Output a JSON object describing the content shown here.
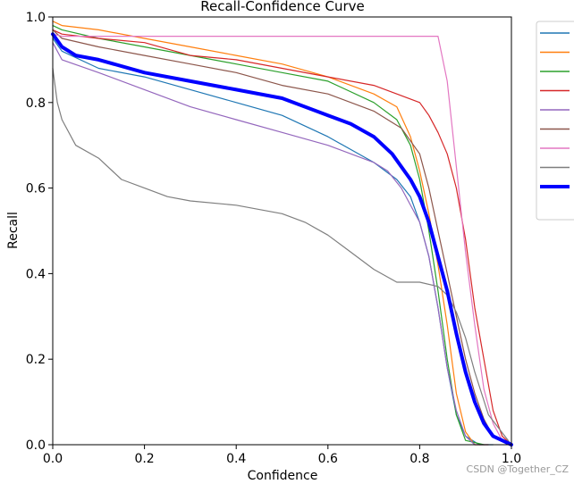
{
  "chart_data": {
    "type": "line",
    "title": "Recall-Confidence Curve",
    "xlabel": "Confidence",
    "ylabel": "Recall",
    "xlim": [
      0.0,
      1.0
    ],
    "ylim": [
      0.0,
      1.0
    ],
    "x_ticks": [
      "0.0",
      "0.2",
      "0.4",
      "0.6",
      "0.8",
      "1.0"
    ],
    "y_ticks": [
      "0.0",
      "0.2",
      "0.4",
      "0.6",
      "0.8",
      "1.0"
    ],
    "grid": false,
    "legend_placement": "outside-top-right",
    "series": [
      {
        "color": "#1f77b4",
        "width": "thin",
        "x": [
          0.0,
          0.02,
          0.1,
          0.2,
          0.3,
          0.4,
          0.5,
          0.6,
          0.7,
          0.75,
          0.78,
          0.8,
          0.82,
          0.84,
          0.86,
          0.88,
          0.9,
          0.93,
          0.96
        ],
        "y": [
          0.95,
          0.92,
          0.88,
          0.86,
          0.83,
          0.8,
          0.77,
          0.72,
          0.66,
          0.62,
          0.58,
          0.52,
          0.44,
          0.32,
          0.18,
          0.07,
          0.02,
          0.0,
          0.0
        ]
      },
      {
        "color": "#ff7f0e",
        "width": "thin",
        "x": [
          0.0,
          0.02,
          0.1,
          0.2,
          0.3,
          0.4,
          0.5,
          0.6,
          0.7,
          0.75,
          0.78,
          0.8,
          0.82,
          0.84,
          0.86,
          0.88,
          0.9,
          0.92,
          0.95
        ],
        "y": [
          0.99,
          0.98,
          0.97,
          0.95,
          0.93,
          0.91,
          0.89,
          0.86,
          0.82,
          0.79,
          0.72,
          0.64,
          0.54,
          0.42,
          0.28,
          0.12,
          0.03,
          0.0,
          0.0
        ]
      },
      {
        "color": "#2ca02c",
        "width": "thin",
        "x": [
          0.0,
          0.02,
          0.1,
          0.2,
          0.3,
          0.4,
          0.5,
          0.6,
          0.7,
          0.75,
          0.78,
          0.8,
          0.82,
          0.84,
          0.86,
          0.88,
          0.9,
          0.94
        ],
        "y": [
          0.98,
          0.97,
          0.95,
          0.93,
          0.91,
          0.89,
          0.87,
          0.85,
          0.8,
          0.76,
          0.7,
          0.62,
          0.5,
          0.36,
          0.2,
          0.07,
          0.01,
          0.0
        ]
      },
      {
        "color": "#d62728",
        "width": "thin",
        "x": [
          0.0,
          0.02,
          0.1,
          0.2,
          0.3,
          0.4,
          0.5,
          0.6,
          0.7,
          0.75,
          0.8,
          0.82,
          0.84,
          0.86,
          0.88,
          0.9,
          0.92,
          0.94,
          0.96,
          0.98,
          1.0
        ],
        "y": [
          0.97,
          0.96,
          0.95,
          0.94,
          0.91,
          0.9,
          0.88,
          0.86,
          0.84,
          0.82,
          0.8,
          0.77,
          0.73,
          0.68,
          0.6,
          0.48,
          0.32,
          0.2,
          0.08,
          0.02,
          0.0
        ]
      },
      {
        "color": "#9467bd",
        "width": "thin",
        "x": [
          0.0,
          0.02,
          0.1,
          0.2,
          0.3,
          0.4,
          0.5,
          0.6,
          0.7,
          0.73,
          0.76,
          0.8,
          0.82,
          0.84,
          0.86,
          0.88,
          0.9,
          0.92,
          0.95
        ],
        "y": [
          0.94,
          0.9,
          0.87,
          0.83,
          0.79,
          0.76,
          0.73,
          0.7,
          0.66,
          0.64,
          0.6,
          0.52,
          0.44,
          0.32,
          0.18,
          0.08,
          0.02,
          0.0,
          0.0
        ]
      },
      {
        "color": "#8c564b",
        "width": "thin",
        "x": [
          0.0,
          0.02,
          0.1,
          0.2,
          0.3,
          0.4,
          0.5,
          0.6,
          0.7,
          0.76,
          0.8,
          0.82,
          0.84,
          0.86,
          0.88,
          0.9,
          0.92,
          0.94,
          0.96,
          1.0
        ],
        "y": [
          0.97,
          0.95,
          0.93,
          0.91,
          0.89,
          0.87,
          0.84,
          0.82,
          0.78,
          0.74,
          0.68,
          0.6,
          0.5,
          0.4,
          0.3,
          0.2,
          0.12,
          0.06,
          0.02,
          0.0
        ]
      },
      {
        "color": "#e377c2",
        "width": "thin",
        "x": [
          0.0,
          0.02,
          0.1,
          0.2,
          0.3,
          0.4,
          0.5,
          0.6,
          0.7,
          0.8,
          0.84,
          0.86,
          0.88,
          0.9,
          0.92,
          0.94,
          0.96,
          0.98,
          1.0
        ],
        "y": [
          0.96,
          0.955,
          0.955,
          0.955,
          0.955,
          0.955,
          0.955,
          0.955,
          0.955,
          0.955,
          0.955,
          0.85,
          0.65,
          0.45,
          0.28,
          0.13,
          0.05,
          0.01,
          0.0
        ]
      },
      {
        "color": "#7f7f7f",
        "width": "thin",
        "x": [
          0.0,
          0.01,
          0.02,
          0.05,
          0.1,
          0.15,
          0.2,
          0.25,
          0.3,
          0.4,
          0.5,
          0.55,
          0.6,
          0.65,
          0.7,
          0.75,
          0.8,
          0.84,
          0.86,
          0.88,
          0.9,
          0.92,
          0.95,
          1.0
        ],
        "y": [
          0.88,
          0.8,
          0.76,
          0.7,
          0.67,
          0.62,
          0.6,
          0.58,
          0.57,
          0.56,
          0.54,
          0.52,
          0.49,
          0.45,
          0.41,
          0.38,
          0.38,
          0.37,
          0.35,
          0.31,
          0.25,
          0.17,
          0.07,
          0.0
        ]
      },
      {
        "color": "#0000ff",
        "width": "thick",
        "x": [
          0.0,
          0.02,
          0.05,
          0.1,
          0.2,
          0.3,
          0.4,
          0.5,
          0.6,
          0.65,
          0.7,
          0.74,
          0.78,
          0.8,
          0.82,
          0.84,
          0.86,
          0.88,
          0.9,
          0.92,
          0.94,
          0.96,
          0.98,
          1.0
        ],
        "y": [
          0.96,
          0.93,
          0.91,
          0.9,
          0.87,
          0.85,
          0.83,
          0.81,
          0.77,
          0.75,
          0.72,
          0.68,
          0.62,
          0.58,
          0.52,
          0.44,
          0.36,
          0.26,
          0.17,
          0.1,
          0.05,
          0.02,
          0.01,
          0.0
        ]
      }
    ]
  },
  "watermark": "CSDN @Together_CZ"
}
